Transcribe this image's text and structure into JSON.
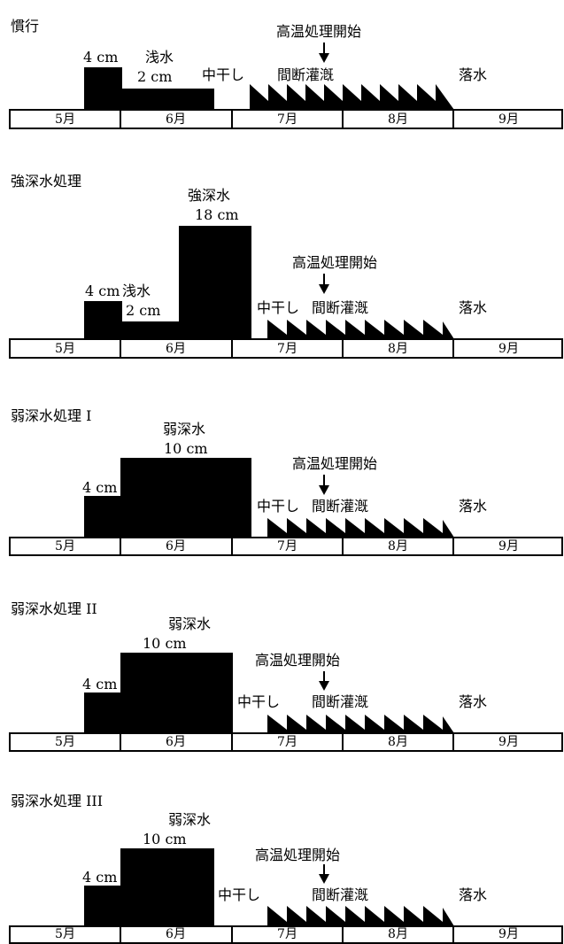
{
  "months": [
    "5月",
    "6月",
    "7月",
    "8月",
    "9月"
  ],
  "panels": [
    {
      "title": "慣行",
      "labels": {
        "shallow_initial": "4 cm",
        "shallow_water": "浅水",
        "shallow_depth": "2 cm",
        "midseason_drain": "中干し",
        "intermittent": "間断灌漑",
        "heat_start": "高温処理開始",
        "final_drain": "落水"
      }
    },
    {
      "title": "強深水処理",
      "labels": {
        "shallow_initial": "4 cm",
        "shallow_water": "浅水",
        "shallow_depth": "2 cm",
        "deep_name": "強深水",
        "deep_depth": "18 cm",
        "midseason_drain": "中干し",
        "intermittent": "間断灌漑",
        "heat_start": "高温処理開始",
        "final_drain": "落水"
      }
    },
    {
      "title": "弱深水処理 I",
      "labels": {
        "shallow_initial": "4 cm",
        "deep_name": "弱深水",
        "deep_depth": "10 cm",
        "midseason_drain": "中干し",
        "intermittent": "間断灌漑",
        "heat_start": "高温処理開始",
        "final_drain": "落水"
      }
    },
    {
      "title": "弱深水処理 II",
      "labels": {
        "shallow_initial": "4 cm",
        "deep_name": "弱深水",
        "deep_depth": "10 cm",
        "midseason_drain": "中干し",
        "intermittent": "間断灌漑",
        "heat_start": "高温処理開始",
        "final_drain": "落水"
      }
    },
    {
      "title": "弱深水処理 III",
      "labels": {
        "shallow_initial": "4 cm",
        "deep_name": "弱深水",
        "deep_depth": "10 cm",
        "midseason_drain": "中干し",
        "intermittent": "間断灌漑",
        "heat_start": "高温処理開始",
        "final_drain": "落水"
      }
    }
  ],
  "colors": {
    "fill": "#000000",
    "background": "#ffffff"
  }
}
